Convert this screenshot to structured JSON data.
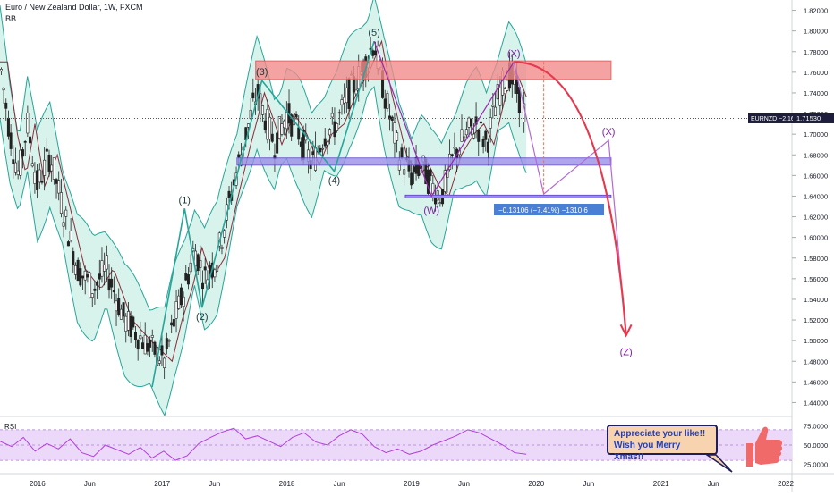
{
  "header": {
    "title": "Euro / New Zealand Dollar, 1W, FXCM",
    "indicator": "BB"
  },
  "rsi_panel": {
    "label": "RSI",
    "ticks": [
      "75.0000",
      "50.0000",
      "25.0000"
    ]
  },
  "price_tag": {
    "symbol": "EURNZD",
    "change": "−2.16%",
    "price": "1.71530"
  },
  "measure_label": "−0.13106 (−7.41%) −1310.6",
  "callout": {
    "line1": "Appreciate your like!!",
    "line2": "Wish you Merry Xmas!!"
  },
  "colors": {
    "resistance_zone": "#f28b8b",
    "support_zone": "#9a8fe8",
    "bands_fill": "#c8ede4",
    "band_line": "#26a69a",
    "wave_line": "#26a69a",
    "projection": "#9c27b0",
    "arc": "#e53950",
    "rsi_band": "#ecd9f9",
    "rsi_line": "#b33fd9",
    "candle": "#222222"
  },
  "chart_data": {
    "type": "line",
    "symbol": "EURNZD",
    "timeframe": "1W",
    "ylim": [
      1.43,
      1.83
    ],
    "y_ticks": [
      "1.82000",
      "1.80000",
      "1.78000",
      "1.76000",
      "1.74000",
      "1.72000",
      "1.70000",
      "1.68000",
      "1.66000",
      "1.64000",
      "1.62000",
      "1.60000",
      "1.58000",
      "1.56000",
      "1.54000",
      "1.52000",
      "1.50000",
      "1.48000",
      "1.46000",
      "1.44000"
    ],
    "x_ticks": [
      "2016",
      "Jun",
      "2017",
      "Jun",
      "2018",
      "Jun",
      "2019",
      "Jun",
      "2020",
      "Jun",
      "2021",
      "Jun",
      "2022"
    ],
    "x_tick_pos": [
      2016.0,
      2016.42,
      2017.0,
      2017.42,
      2018.0,
      2018.42,
      2019.0,
      2019.42,
      2020.0,
      2020.42,
      2021.0,
      2021.42,
      2022.0
    ],
    "xlim": [
      2015.7,
      2022.05
    ],
    "last_price": 1.7153,
    "price_series": [
      [
        2015.7,
        1.77
      ],
      [
        2015.78,
        1.7
      ],
      [
        2015.85,
        1.66
      ],
      [
        2015.92,
        1.71
      ],
      [
        2016.0,
        1.65
      ],
      [
        2016.1,
        1.68
      ],
      [
        2016.2,
        1.63
      ],
      [
        2016.32,
        1.57
      ],
      [
        2016.45,
        1.55
      ],
      [
        2016.55,
        1.57
      ],
      [
        2016.7,
        1.52
      ],
      [
        2016.85,
        1.5
      ],
      [
        2017.02,
        1.48
      ],
      [
        2017.1,
        1.52
      ],
      [
        2017.18,
        1.55
      ],
      [
        2017.26,
        1.59
      ],
      [
        2017.34,
        1.56
      ],
      [
        2017.44,
        1.58
      ],
      [
        2017.55,
        1.64
      ],
      [
        2017.65,
        1.69
      ],
      [
        2017.76,
        1.74
      ],
      [
        2017.9,
        1.69
      ],
      [
        2018.0,
        1.72
      ],
      [
        2018.1,
        1.7
      ],
      [
        2018.2,
        1.67
      ],
      [
        2018.3,
        1.7
      ],
      [
        2018.4,
        1.71
      ],
      [
        2018.5,
        1.74
      ],
      [
        2018.6,
        1.76
      ],
      [
        2018.7,
        1.79
      ],
      [
        2018.78,
        1.74
      ],
      [
        2018.9,
        1.68
      ],
      [
        2019.0,
        1.66
      ],
      [
        2019.08,
        1.67
      ],
      [
        2019.16,
        1.65
      ],
      [
        2019.24,
        1.64
      ],
      [
        2019.34,
        1.68
      ],
      [
        2019.44,
        1.7
      ],
      [
        2019.52,
        1.71
      ],
      [
        2019.6,
        1.69
      ],
      [
        2019.7,
        1.74
      ],
      [
        2019.78,
        1.76
      ],
      [
        2019.85,
        1.74
      ],
      [
        2019.92,
        1.7153
      ]
    ],
    "wave_labels": [
      {
        "text": "(1)",
        "x": 2017.18,
        "y": 1.628
      },
      {
        "text": "(2)",
        "x": 2017.32,
        "y": 1.532
      },
      {
        "text": "(3)",
        "x": 2017.8,
        "y": 1.752
      },
      {
        "text": "(4)",
        "x": 2018.38,
        "y": 1.664
      },
      {
        "text": "(5)",
        "x": 2018.7,
        "y": 1.79
      },
      {
        "text": "(W)",
        "x": 2019.16,
        "y": 1.635
      },
      {
        "text": "(X)",
        "x": 2019.82,
        "y": 1.77
      },
      {
        "text": "(X)",
        "x": 2020.58,
        "y": 1.694
      },
      {
        "text": "(Z)",
        "x": 2020.72,
        "y": 1.498
      }
    ],
    "zones": [
      {
        "name": "resistance",
        "x": [
          2017.75,
          2020.6
        ],
        "y": [
          1.753,
          1.771
        ]
      },
      {
        "name": "support",
        "x": [
          2017.6,
          2020.6
        ],
        "y": [
          1.67,
          1.677
        ]
      }
    ],
    "rsi": {
      "ylim": [
        15,
        85
      ],
      "band": [
        30,
        70
      ],
      "values": [
        55,
        48,
        60,
        42,
        52,
        45,
        58,
        40,
        35,
        50,
        44,
        38,
        47,
        33,
        42,
        30,
        36,
        52,
        60,
        67,
        72,
        58,
        62,
        55,
        48,
        60,
        66,
        54,
        50,
        62,
        70,
        64,
        48,
        40,
        45,
        38,
        42,
        50,
        56,
        62,
        70,
        66,
        58,
        50,
        40,
        38
      ]
    }
  }
}
